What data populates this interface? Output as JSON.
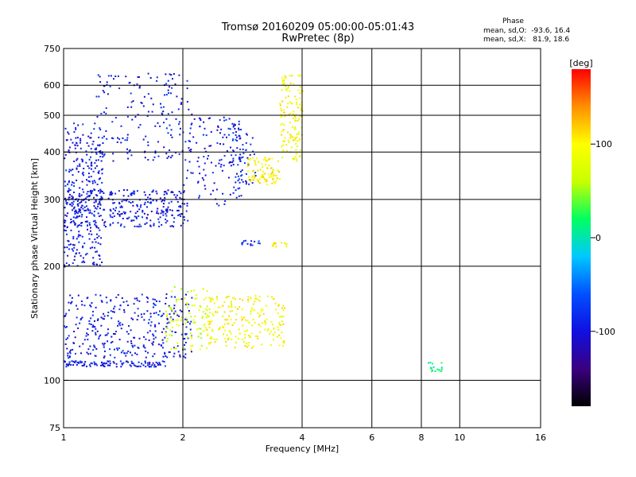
{
  "header": {
    "title_line1": "Tromsø 20160209 05:00:00-05:01:43",
    "title_line2": "RwPretec (8p)"
  },
  "phase_box": {
    "title": "Phase",
    "mean_o": "mean, sd,O:  -93.6, 16.4",
    "mean_x": "mean, sd,X:   81.9, 18.6"
  },
  "colorbar": {
    "label": "[deg]",
    "ticks": [
      {
        "v": 100,
        "label": "100"
      },
      {
        "v": 0,
        "label": "0"
      },
      {
        "v": -100,
        "label": "-100"
      }
    ],
    "range": [
      -180,
      180
    ],
    "colors": [
      "#000000",
      "#3a0080",
      "#1010e0",
      "#0050ff",
      "#00c8ff",
      "#00ff60",
      "#c8ff00",
      "#ffff00",
      "#ff9000",
      "#ff0000"
    ]
  },
  "chart_data": {
    "type": "scatter",
    "title": "Tromsø 20160209 05:00:00-05:01:43",
    "subtitle": "RwPretec (8p)",
    "xlabel": "Frequency [MHz]",
    "ylabel": "Stationary phase Virtual Height [km]",
    "x_scale": "log",
    "y_scale": "log",
    "xlim": [
      1,
      16
    ],
    "ylim": [
      75,
      750
    ],
    "grid": true,
    "x_ticks": [
      1,
      2,
      4,
      6,
      8,
      10,
      16
    ],
    "x_tick_labels": [
      "1",
      "2",
      "4",
      "6",
      "8",
      "10",
      "16"
    ],
    "x_grid": [
      2,
      4,
      6,
      8,
      10
    ],
    "y_ticks": [
      75,
      100,
      200,
      300,
      400,
      500,
      600,
      750
    ],
    "y_tick_labels": [
      "75",
      "100",
      "200",
      "300",
      "400",
      "500",
      "600",
      "750"
    ],
    "y_grid": [
      100,
      200,
      300,
      400,
      500,
      600
    ],
    "color_encodes": "phase [deg]",
    "clusters": [
      {
        "x": [
          1.0,
          1.25
        ],
        "y": [
          200,
          480
        ],
        "phase": -95,
        "n": 300
      },
      {
        "x": [
          1.0,
          2.05
        ],
        "y": [
          255,
          320
        ],
        "phase": -95,
        "n": 320
      },
      {
        "x": [
          1.2,
          2.1
        ],
        "y": [
          380,
          650
        ],
        "phase": -95,
        "n": 170
      },
      {
        "x": [
          2.0,
          2.8
        ],
        "y": [
          290,
          500
        ],
        "phase": -95,
        "n": 130
      },
      {
        "x": [
          2.6,
          3.05
        ],
        "y": [
          330,
          450
        ],
        "phase": -85,
        "n": 60
      },
      {
        "x": [
          2.9,
          3.5
        ],
        "y": [
          330,
          390
        ],
        "phase": 100,
        "n": 90
      },
      {
        "x": [
          3.5,
          4.0
        ],
        "y": [
          380,
          640
        ],
        "phase": 95,
        "n": 140
      },
      {
        "x": [
          1.0,
          2.1
        ],
        "y": [
          115,
          170
        ],
        "phase": -95,
        "n": 330
      },
      {
        "x": [
          1.0,
          1.8
        ],
        "y": [
          109,
          113
        ],
        "phase": -95,
        "n": 110
      },
      {
        "x": [
          1.8,
          2.3
        ],
        "y": [
          120,
          180
        ],
        "phase": 70,
        "n": 90
      },
      {
        "x": [
          2.25,
          3.6
        ],
        "y": [
          122,
          168
        ],
        "phase": 95,
        "n": 230
      },
      {
        "x": [
          2.8,
          3.15
        ],
        "y": [
          228,
          235
        ],
        "phase": -80,
        "n": 14
      },
      {
        "x": [
          3.35,
          3.65
        ],
        "y": [
          226,
          232
        ],
        "phase": 95,
        "n": 14
      },
      {
        "x": [
          8.3,
          9.0
        ],
        "y": [
          106,
          112
        ],
        "phase": 10,
        "n": 18
      }
    ]
  }
}
